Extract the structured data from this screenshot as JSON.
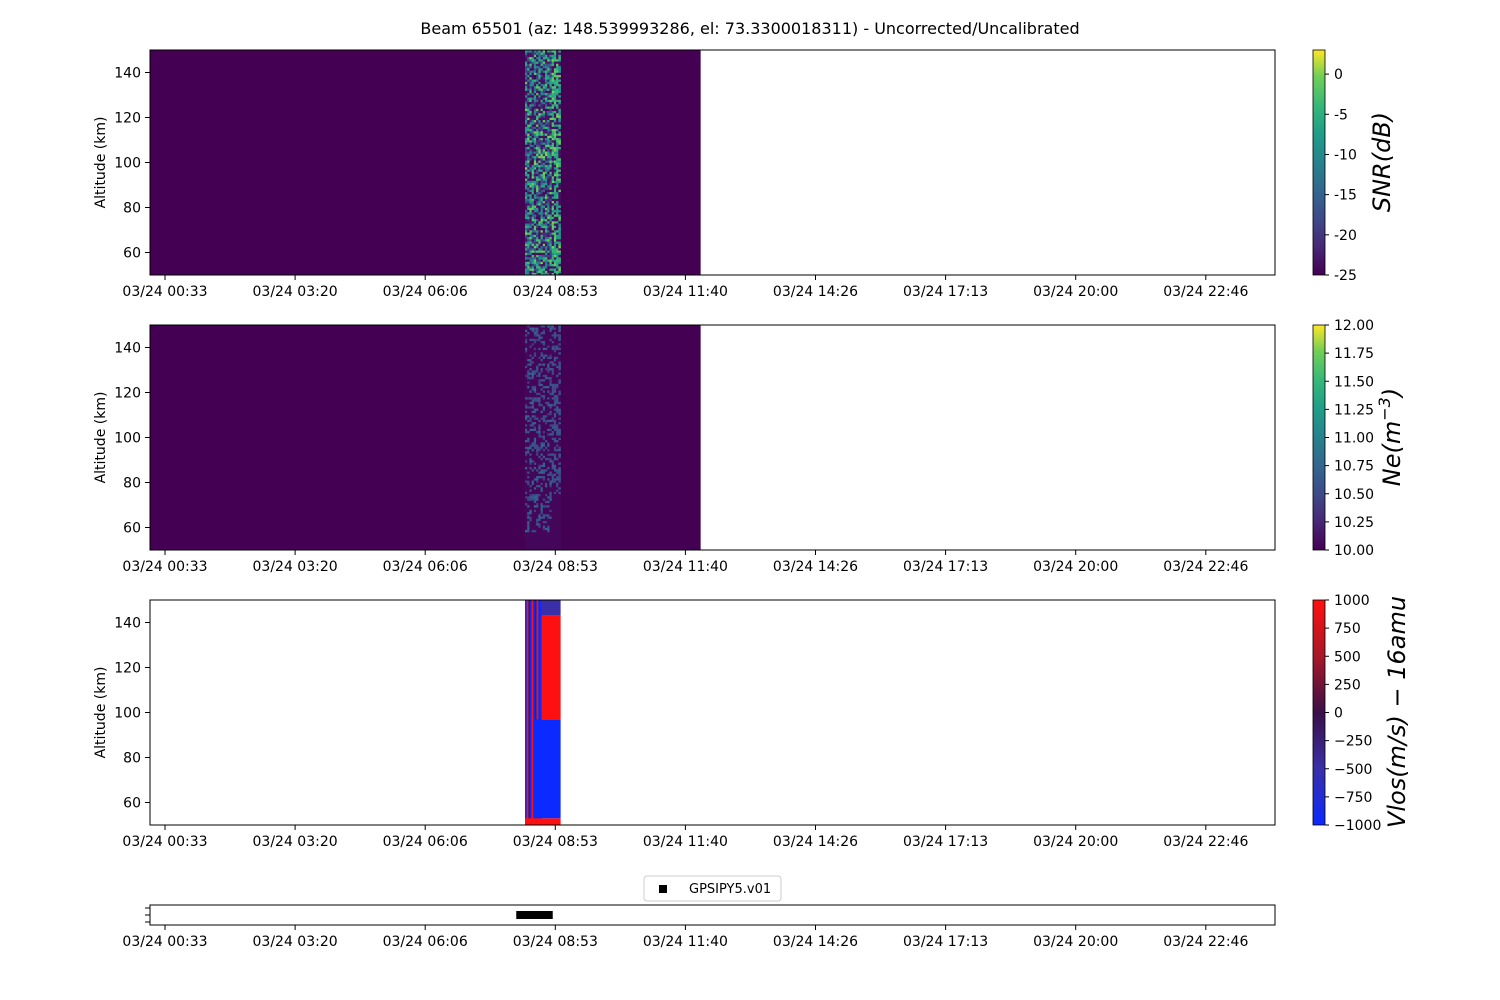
{
  "title": "Beam 65501 (az: 148.539993286, el: 73.3300018311) - Uncorrected/Uncalibrated",
  "chart_data": [
    {
      "type": "heatmap",
      "name": "snr",
      "ylabel": "Altitude (km)",
      "ylim": [
        50,
        150
      ],
      "yticks": [
        60,
        80,
        100,
        120,
        140
      ],
      "xlim_hours": [
        0.3,
        24
      ],
      "xticks": [
        "03/24 00:33",
        "03/24 03:20",
        "03/24 06:06",
        "03/24 08:53",
        "03/24 11:40",
        "03/24 14:26",
        "03/24 17:13",
        "03/24 20:00",
        "03/24 22:46"
      ],
      "data_extent_hours": [
        0.3,
        11.9
      ],
      "background_value": -25,
      "active_interval_hours": [
        8.2,
        8.95
      ],
      "colorbar": {
        "label": "SNR(dB)",
        "min": -25,
        "max": 3,
        "ticks": [
          0,
          -5,
          -10,
          -15,
          -20,
          -25
        ],
        "cmap": "viridis"
      }
    },
    {
      "type": "heatmap",
      "name": "ne",
      "ylabel": "Altitude (km)",
      "ylim": [
        50,
        150
      ],
      "yticks": [
        60,
        80,
        100,
        120,
        140
      ],
      "xlim_hours": [
        0.3,
        24
      ],
      "xticks": [
        "03/24 00:33",
        "03/24 03:20",
        "03/24 06:06",
        "03/24 08:53",
        "03/24 11:40",
        "03/24 14:26",
        "03/24 17:13",
        "03/24 20:00",
        "03/24 22:46"
      ],
      "data_extent_hours": [
        0.3,
        11.9
      ],
      "background_value": 10,
      "active_interval_hours": [
        8.2,
        8.95
      ],
      "colorbar": {
        "label": "Ne(m^-3)",
        "label_main": "Ne(m",
        "label_sup": "−3",
        "label_end": ")",
        "min": 10,
        "max": 12,
        "ticks": [
          "12.00",
          "11.75",
          "11.50",
          "11.25",
          "11.00",
          "10.75",
          "10.50",
          "10.25",
          "10.00"
        ],
        "cmap": "viridis"
      }
    },
    {
      "type": "heatmap",
      "name": "vlos",
      "ylabel": "Altitude (km)",
      "ylim": [
        50,
        150
      ],
      "yticks": [
        60,
        80,
        100,
        120,
        140
      ],
      "xlim_hours": [
        0.3,
        24
      ],
      "xticks": [
        "03/24 00:33",
        "03/24 03:20",
        "03/24 06:06",
        "03/24 08:53",
        "03/24 11:40",
        "03/24 14:26",
        "03/24 17:13",
        "03/24 20:00",
        "03/24 22:46"
      ],
      "active_interval_hours": [
        8.2,
        8.95
      ],
      "blocks": [
        {
          "x": [
            8.2,
            8.95
          ],
          "y": [
            50,
            53
          ],
          "value": 1000
        },
        {
          "x": [
            8.4,
            8.95
          ],
          "y": [
            53,
            97
          ],
          "value": -1000
        },
        {
          "x": [
            8.55,
            8.95
          ],
          "y": [
            97,
            143
          ],
          "value": 1000
        },
        {
          "x": [
            8.55,
            8.95
          ],
          "y": [
            143,
            150
          ],
          "value": -500
        }
      ],
      "colorbar": {
        "label": "Vlos(m/s) − 16amu",
        "min": -1000,
        "max": 1000,
        "ticks": [
          "1000",
          "750",
          "500",
          "250",
          "0",
          "−250",
          "−500",
          "−750",
          "−1000"
        ],
        "cmap": "bwr-dark"
      }
    },
    {
      "type": "scatter",
      "name": "gps",
      "legend": "GPSIPY5.v01",
      "xlim_hours": [
        0.3,
        24
      ],
      "xticks": [
        "03/24 00:33",
        "03/24 03:20",
        "03/24 06:06",
        "03/24 08:53",
        "03/24 11:40",
        "03/24 14:26",
        "03/24 17:13",
        "03/24 20:00",
        "03/24 22:46"
      ],
      "points_hours": [
        8.1,
        8.15,
        8.2,
        8.25,
        8.3,
        8.35,
        8.4,
        8.45,
        8.5,
        8.55,
        8.6,
        8.65,
        8.7
      ]
    }
  ]
}
